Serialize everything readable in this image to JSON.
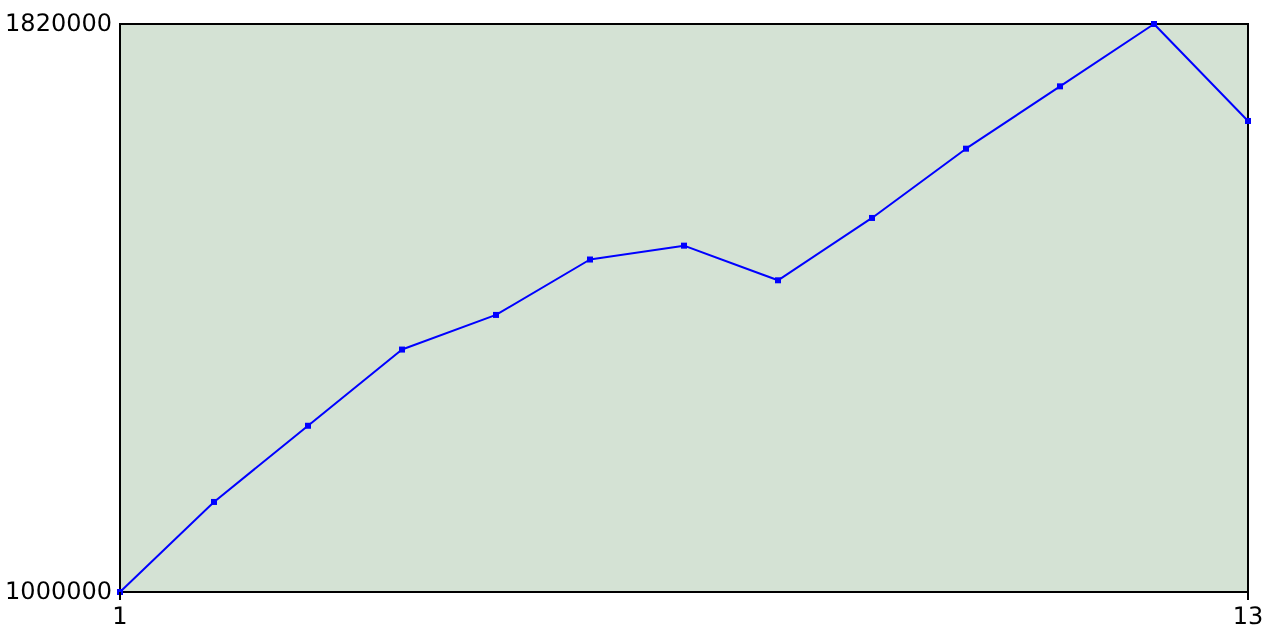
{
  "chart_data": {
    "type": "line",
    "x": [
      1,
      2,
      3,
      4,
      5,
      6,
      7,
      8,
      9,
      10,
      11,
      12,
      13
    ],
    "series": [
      {
        "color": "#0000ff",
        "values": [
          1000000,
          1130000,
          1240000,
          1350000,
          1400000,
          1480000,
          1500000,
          1450000,
          1540000,
          1640000,
          1730000,
          1820000,
          1680000
        ]
      }
    ],
    "xlim": [
      1,
      13
    ],
    "xticks": [
      1,
      13
    ],
    "ylim": [
      1000000,
      1820000
    ],
    "yticks": [
      1000000,
      1820000
    ],
    "grid": false,
    "marker": "square",
    "line_style": "solid"
  }
}
